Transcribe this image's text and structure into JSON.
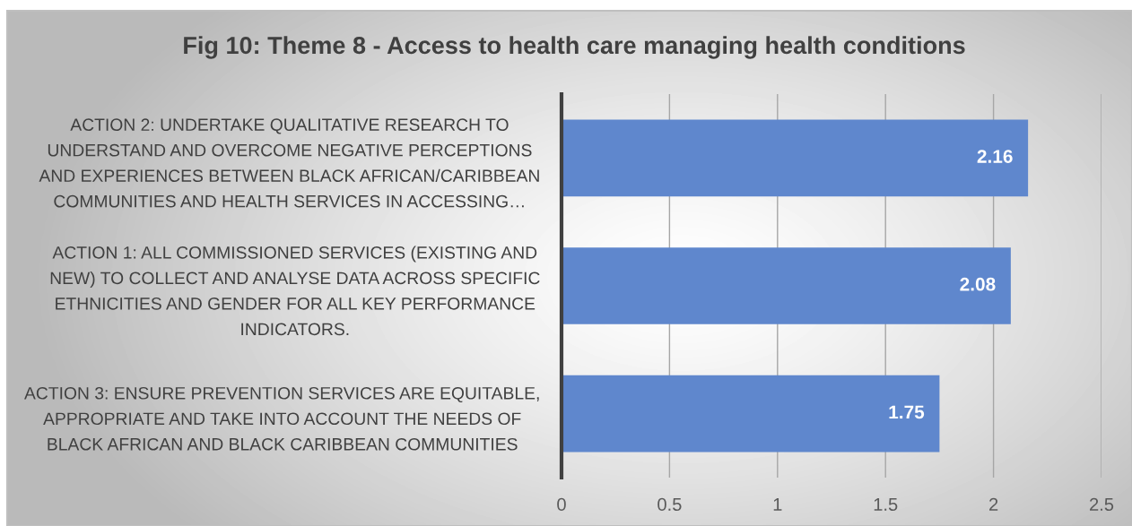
{
  "chart_data": {
    "type": "bar",
    "orientation": "horizontal",
    "title": "Fig 10: Theme 8 - Access to health care managing health conditions",
    "categories": [
      "ACTION 2: UNDERTAKE QUALITATIVE RESEARCH TO\nUNDERSTAND AND OVERCOME NEGATIVE PERCEPTIONS\nAND EXPERIENCES BETWEEN BLACK AFRICAN/CARIBBEAN\nCOMMUNITIES AND HEALTH SERVICES IN ACCESSING…",
      "ACTION 1: ALL COMMISSIONED SERVICES (EXISTING AND\nNEW) TO COLLECT AND ANALYSE DATA ACROSS SPECIFIC\nETHNICITIES AND GENDER FOR ALL KEY PERFORMANCE\nINDICATORS.",
      "ACTION 3: ENSURE PREVENTION SERVICES ARE EQUITABLE,\nAPPROPRIATE AND TAKE INTO ACCOUNT THE NEEDS OF\nBLACK AFRICAN AND BLACK CARIBBEAN COMMUNITIES"
    ],
    "values": [
      2.16,
      2.08,
      1.75
    ],
    "color": "#5f87cd",
    "xlim": [
      0,
      2.5
    ],
    "xticks": [
      0,
      0.5,
      1,
      1.5,
      2,
      2.5
    ],
    "grid": "x",
    "data_labels": true
  }
}
